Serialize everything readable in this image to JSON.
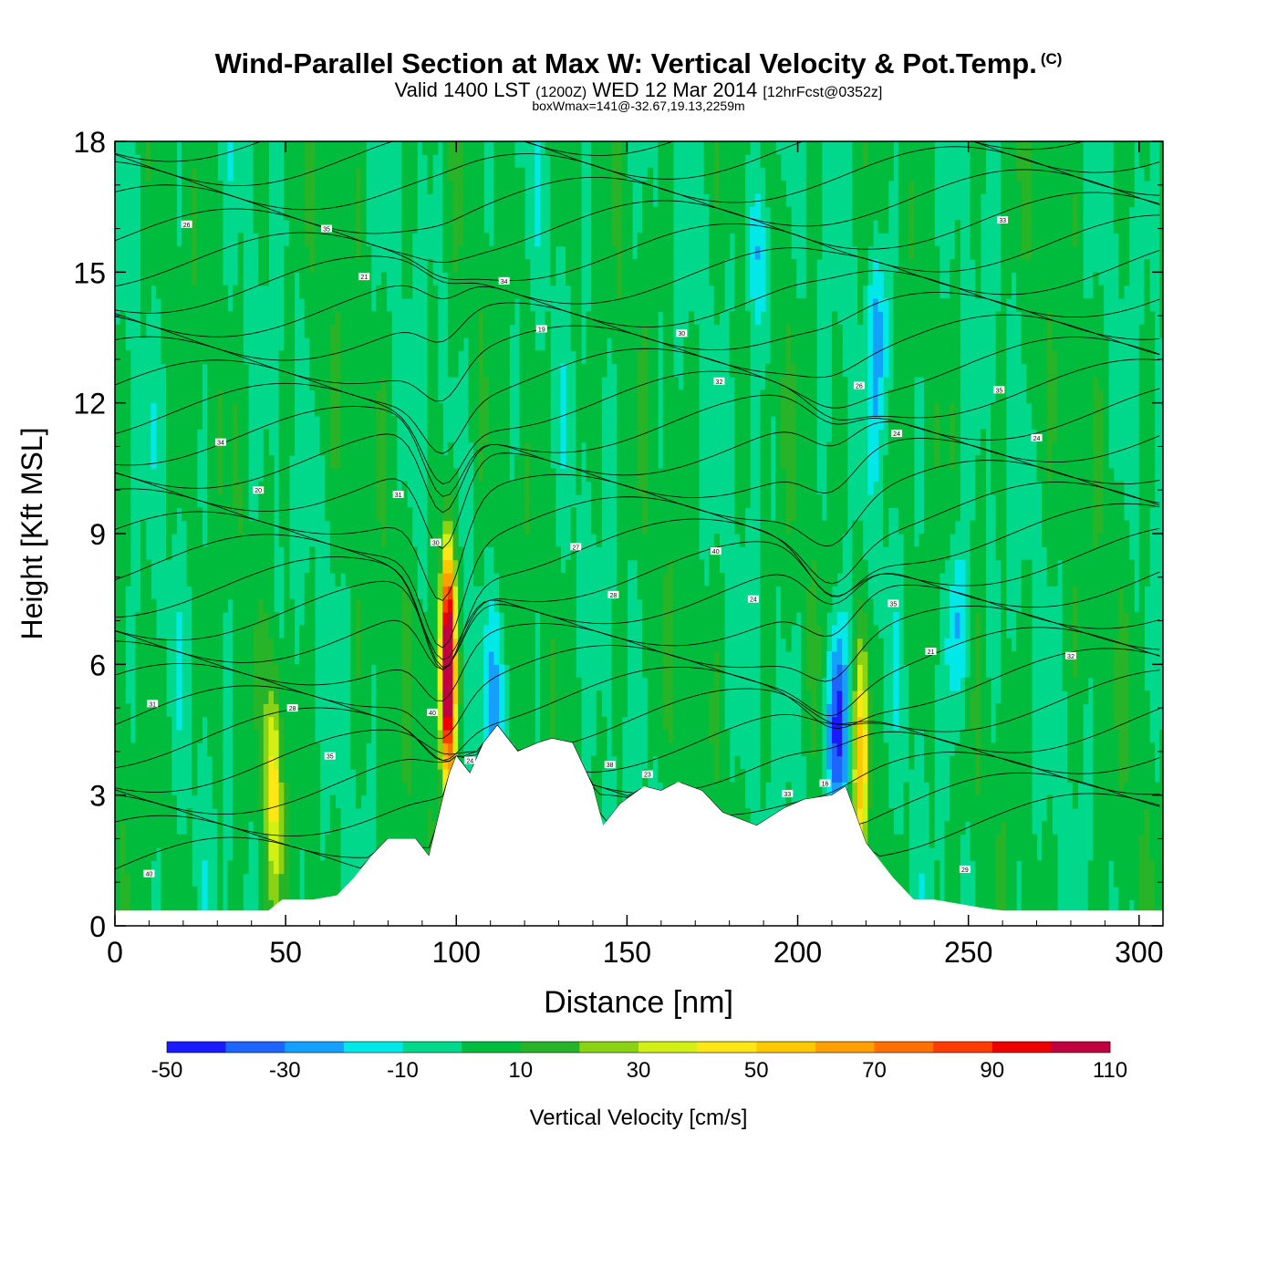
{
  "header": {
    "title": "Wind-Parallel Section at Max W: Vertical Velocity & Pot.Temp.",
    "copyright": "(C)",
    "valid_main": "Valid 1400 LST",
    "valid_z": "(1200Z)",
    "valid_date": "WED 12 Mar 2014",
    "fcst": "[12hrFcst@0352z]",
    "boxwmax": "boxWmax=141@-32.67,19.13,2259m"
  },
  "chart_data": {
    "type": "heatmap",
    "xlabel": "Distance [nm]",
    "ylabel": "Height [Kft MSL]",
    "xlim": [
      0,
      307
    ],
    "ylim": [
      0,
      18
    ],
    "xticks": [
      0,
      50,
      100,
      150,
      200,
      250,
      300
    ],
    "yticks": [
      0,
      3,
      6,
      9,
      12,
      15,
      18
    ],
    "colorbar": {
      "label": "Vertical Velocity [cm/s]",
      "levels": [
        -50,
        -40,
        -30,
        -20,
        -10,
        0,
        10,
        20,
        30,
        40,
        50,
        60,
        70,
        80,
        90,
        100,
        110
      ],
      "tick_labels": [
        "-50",
        "-30",
        "-10",
        "10",
        "30",
        "50",
        "70",
        "90",
        "110"
      ],
      "colors": [
        "#1a1aff",
        "#1e64ff",
        "#14a0ff",
        "#00e8e8",
        "#00d88c",
        "#00bc3c",
        "#28b428",
        "#8cd214",
        "#d2f014",
        "#ffe614",
        "#ffc800",
        "#ffa000",
        "#ff7000",
        "#ff3c00",
        "#ee0000",
        "#c00040"
      ],
      "background": "#00d88c"
    },
    "terrain": [
      [
        0,
        0.35
      ],
      [
        45,
        0.35
      ],
      [
        49,
        0.6
      ],
      [
        58,
        0.6
      ],
      [
        65,
        0.7
      ],
      [
        70,
        1.1
      ],
      [
        75,
        1.6
      ],
      [
        80,
        2.0
      ],
      [
        88,
        2.0
      ],
      [
        92,
        1.6
      ],
      [
        96,
        2.9
      ],
      [
        98,
        3.5
      ],
      [
        100,
        3.9
      ],
      [
        104,
        3.5
      ],
      [
        108,
        4.2
      ],
      [
        112,
        4.6
      ],
      [
        118,
        4.0
      ],
      [
        124,
        4.2
      ],
      [
        128,
        4.3
      ],
      [
        134,
        4.2
      ],
      [
        140,
        3.2
      ],
      [
        143,
        2.3
      ],
      [
        148,
        2.8
      ],
      [
        155,
        3.2
      ],
      [
        160,
        3.1
      ],
      [
        165,
        3.3
      ],
      [
        172,
        3.1
      ],
      [
        178,
        2.6
      ],
      [
        188,
        2.3
      ],
      [
        196,
        2.7
      ],
      [
        202,
        2.9
      ],
      [
        210,
        3.0
      ],
      [
        214,
        3.2
      ],
      [
        220,
        1.9
      ],
      [
        228,
        1.1
      ],
      [
        234,
        0.6
      ],
      [
        240,
        0.6
      ],
      [
        255,
        0.4
      ],
      [
        260,
        0.35
      ],
      [
        307,
        0.35
      ]
    ],
    "updrafts": [
      {
        "x": 97.5,
        "y": 6.0,
        "peak": 141
      },
      {
        "x": 46.5,
        "y": 3.2,
        "peak": 45
      },
      {
        "x": 218.5,
        "y": 3.8,
        "peak": 50
      }
    ],
    "downdrafts": [
      {
        "x": 211.5,
        "y": 4.5,
        "peak": -50
      },
      {
        "x": 247,
        "y": 6.9,
        "peak": -28
      },
      {
        "x": 224,
        "y": 13.5,
        "peak": -26
      },
      {
        "x": 189,
        "y": 15.5,
        "peak": -28
      },
      {
        "x": 112,
        "y": 5.2,
        "peak": -22
      }
    ],
    "isentrope_labels": [
      "40",
      "40",
      "40",
      "35",
      "35",
      "38",
      "35",
      "34",
      "34",
      "33",
      "32",
      "31",
      "30",
      "29",
      "28",
      "27",
      "26",
      "26",
      "24",
      "24",
      "24",
      "21",
      "23",
      "21",
      "20",
      "19",
      "16",
      "31",
      "30",
      "32",
      "33",
      "35",
      "28",
      "24"
    ]
  }
}
